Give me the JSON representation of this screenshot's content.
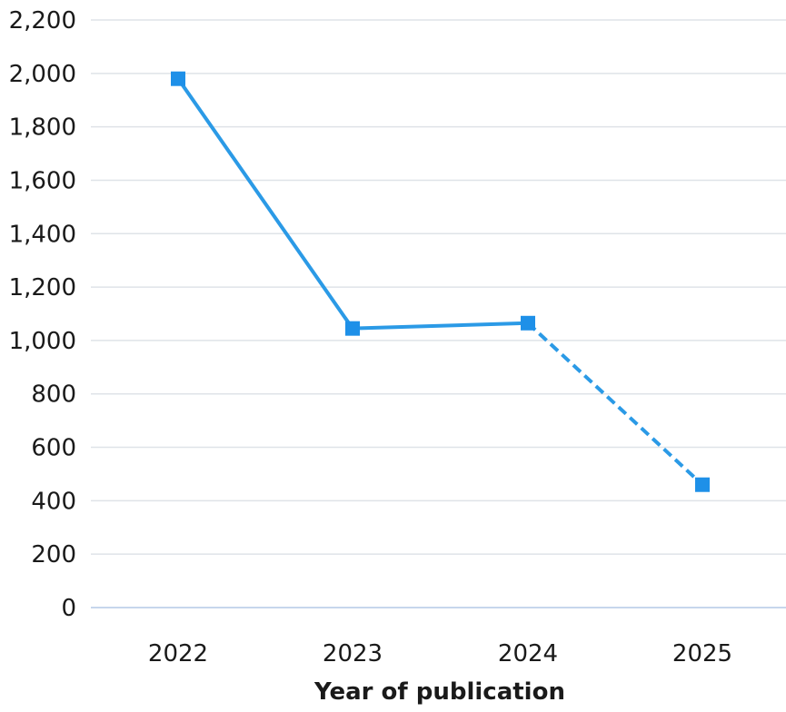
{
  "colors": {
    "series": "#2b9ae6",
    "marker": "#1e90e8",
    "grid": "#dfe3e8",
    "baseline": "#c6d6ec",
    "text": "#1a1a1a"
  },
  "chart_data": {
    "type": "line",
    "title": "",
    "xlabel": "Year of publication",
    "ylabel": "",
    "categories": [
      "2022",
      "2023",
      "2024",
      "2025"
    ],
    "series": [
      {
        "values": [
          1980,
          1045,
          1065,
          460
        ],
        "marker": "square",
        "dashed_from_index": 2
      }
    ],
    "ylim": [
      0,
      2200
    ],
    "y_ticks": [
      0,
      200,
      400,
      600,
      800,
      1000,
      1200,
      1400,
      1600,
      1800,
      2000,
      2200
    ],
    "y_tick_labels": [
      "0",
      "200",
      "400",
      "600",
      "800",
      "1,000",
      "1,200",
      "1,400",
      "1,600",
      "1,800",
      "2,000",
      "2,200"
    ],
    "grid": true,
    "legend": "none"
  }
}
